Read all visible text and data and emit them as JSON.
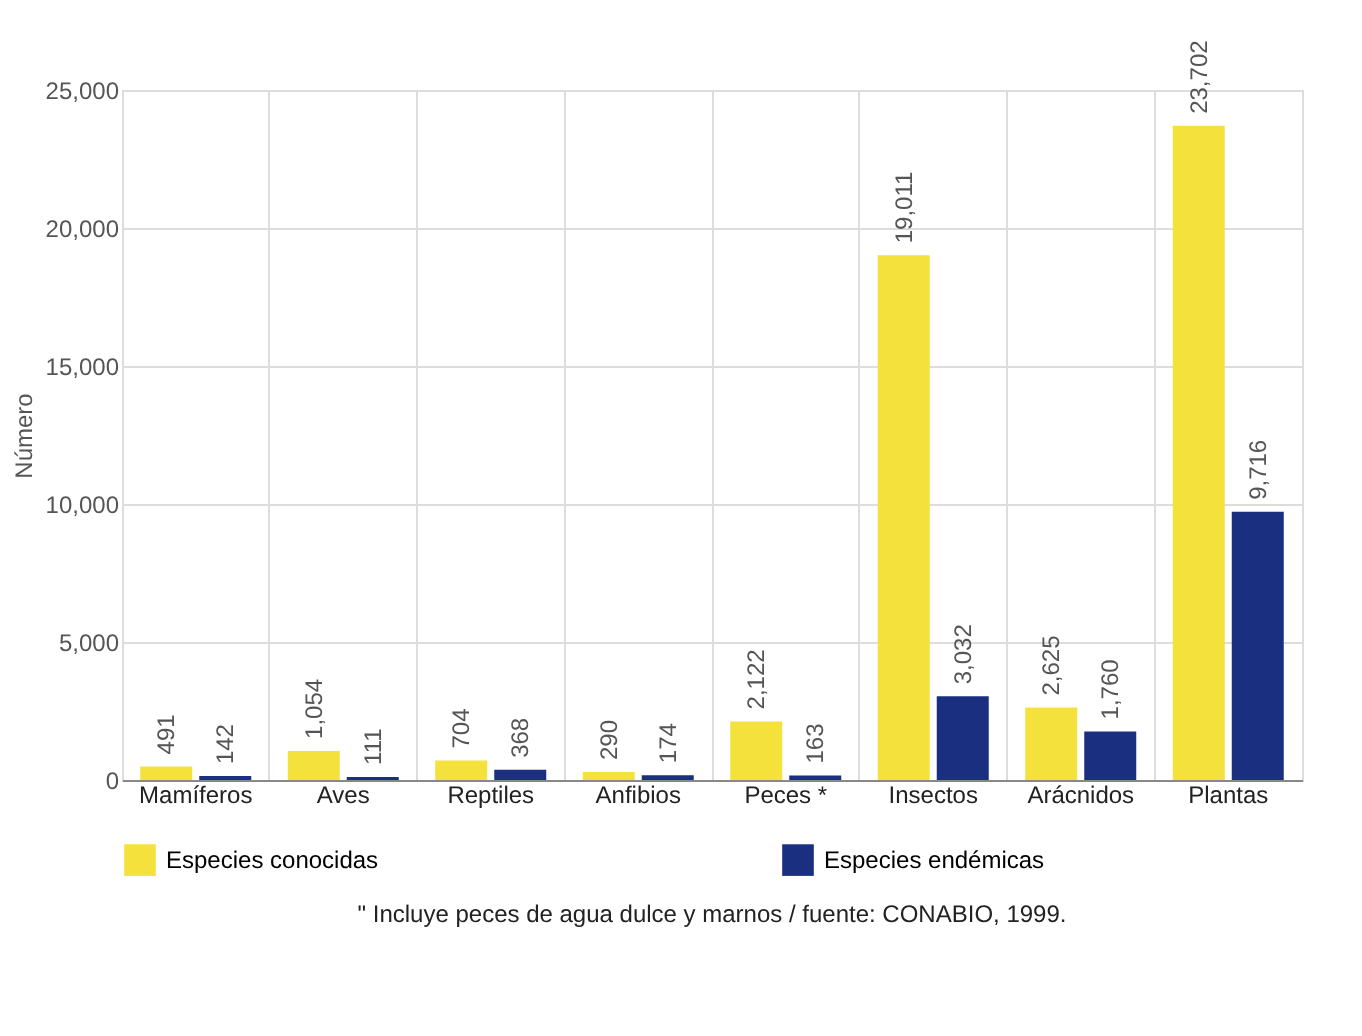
{
  "chart_data": {
    "type": "bar",
    "ylabel": "Número",
    "categories": [
      "Mamíferos",
      "Aves",
      "Reptiles",
      "Anfibios",
      "Peces *",
      "Insectos",
      "Arácnidos",
      "Plantas"
    ],
    "series": [
      {
        "name": "Especies conocidas",
        "color": "#f5e13c",
        "values": [
          491,
          1054,
          704,
          290,
          2122,
          19011,
          2625,
          23702
        ],
        "value_labels": [
          "491",
          "1,054",
          "704",
          "290",
          "2,122",
          "19,011",
          "2,625",
          "23,702"
        ]
      },
      {
        "name": "Especies endémicas",
        "color": "#1a2f80",
        "values": [
          142,
          111,
          368,
          174,
          163,
          3032,
          1760,
          9716
        ],
        "value_labels": [
          "142",
          "111",
          "368",
          "174",
          "163",
          "3,032",
          "1,760",
          "9,716"
        ]
      }
    ],
    "ylim": [
      0,
      25000
    ],
    "yticks": [
      0,
      {
        "value": 5000,
        "label": "5,000"
      },
      {
        "value": 10000,
        "label": "10,000"
      },
      {
        "value": 15000,
        "label": "15,000"
      },
      {
        "value": 20000,
        "label": "20,000"
      },
      {
        "value": 25000,
        "label": "25,000"
      }
    ],
    "grid": true,
    "legend": "bottom",
    "annotations": [
      "\" Incluye peces de agua dulce y marnos / fuente: CONABIO, 1999."
    ]
  }
}
